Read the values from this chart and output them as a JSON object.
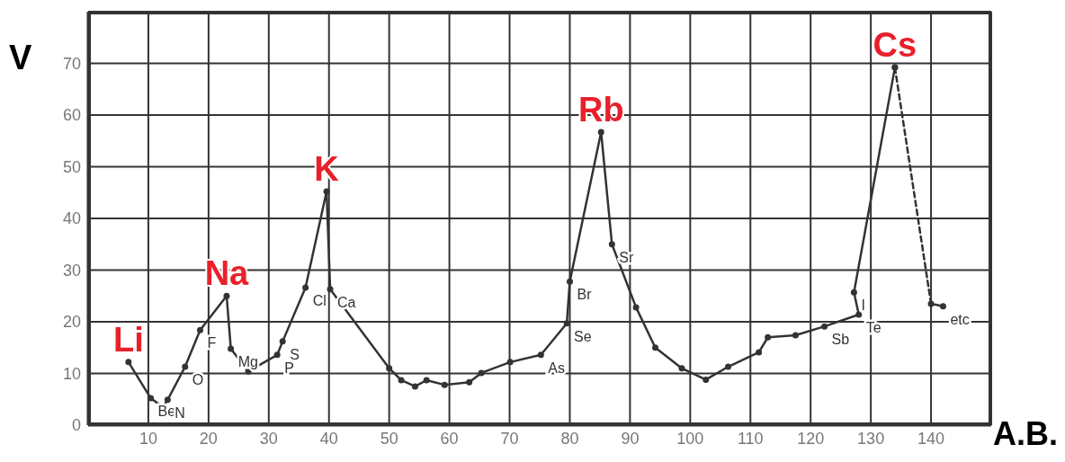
{
  "chart_data": {
    "type": "line",
    "xlabel": "A.B.",
    "ylabel": "V",
    "xlim": [
      0,
      150
    ],
    "xticks": [
      10,
      20,
      30,
      40,
      50,
      60,
      70,
      80,
      90,
      100,
      110,
      120,
      130,
      140
    ],
    "ylim": [
      0,
      80
    ],
    "yticks": [
      0,
      10,
      20,
      30,
      40,
      50,
      60,
      70
    ],
    "grid": true,
    "marker": "circle",
    "legend": false,
    "series": [
      {
        "color": "#333333",
        "line_style": "solid",
        "x": [
          6.7,
          10.4,
          12.4,
          13.2,
          16.1,
          18.6,
          23,
          23.7,
          26.6,
          31.4,
          32.3,
          36.1,
          39.6,
          40.2,
          50,
          52,
          54.3,
          56.2,
          59.2,
          63.3,
          65.3,
          70.1,
          75.2,
          79.5,
          80,
          85.2,
          87,
          91,
          94.2,
          98.6,
          102.6,
          106.3,
          111.4,
          112.9,
          117.5,
          122.3,
          128,
          127.2,
          134
        ],
        "values": [
          12.2,
          5.2,
          3.5,
          4.9,
          11.3,
          18.4,
          25,
          14.8,
          10.4,
          13.6,
          16.2,
          26.6,
          45.2,
          26.3,
          11,
          8.7,
          7.5,
          8.7,
          7.8,
          8.3,
          10.1,
          12.2,
          13.6,
          19.7,
          27.8,
          56.7,
          35,
          22.8,
          15,
          11,
          8.8,
          11.3,
          14.1,
          17,
          17.4,
          19.1,
          21.4,
          25.7,
          69.2
        ]
      },
      {
        "color": "#333333",
        "line_style": "dashed",
        "x": [
          134,
          140,
          142
        ],
        "values": [
          69.2,
          23.5,
          23
        ]
      }
    ],
    "annotations": [
      {
        "text": "Li",
        "x": 6.7,
        "y": 12.2
      },
      {
        "text": "Na",
        "x": 23,
        "y": 25
      },
      {
        "text": "K",
        "x": 39.6,
        "y": 45.2
      },
      {
        "text": "Rb",
        "x": 85.2,
        "y": 56.7
      },
      {
        "text": "Cs",
        "x": 134,
        "y": 69.2
      },
      {
        "text": "Be",
        "x": 10.4,
        "y": 5.2
      },
      {
        "text": "N",
        "x": 13.2,
        "y": 4.9
      },
      {
        "text": "O",
        "x": 16.1,
        "y": 11.3
      },
      {
        "text": "F",
        "x": 18.6,
        "y": 18.4
      },
      {
        "text": "Mg",
        "x": 23.7,
        "y": 14.8
      },
      {
        "text": "P",
        "x": 31.4,
        "y": 13.6
      },
      {
        "text": "S",
        "x": 32.3,
        "y": 16.2
      },
      {
        "text": "Cl",
        "x": 36.1,
        "y": 26.6
      },
      {
        "text": "Ca",
        "x": 40.2,
        "y": 26.3
      },
      {
        "text": "As",
        "x": 75.2,
        "y": 13.6
      },
      {
        "text": "Se",
        "x": 79.5,
        "y": 19.7
      },
      {
        "text": "Br",
        "x": 80,
        "y": 27.8
      },
      {
        "text": "Sr",
        "x": 87,
        "y": 35
      },
      {
        "text": "Sb",
        "x": 122.3,
        "y": 19.1
      },
      {
        "text": "Te",
        "x": 128,
        "y": 21.4
      },
      {
        "text": "I",
        "x": 127.2,
        "y": 25.7
      },
      {
        "text": "etc",
        "x": 142,
        "y": 23
      }
    ]
  }
}
